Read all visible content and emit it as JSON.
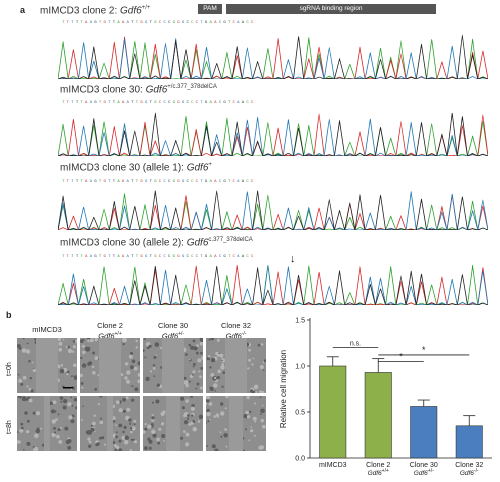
{
  "panel_a": {
    "letter": "a",
    "traces": [
      {
        "title_prefix": "mIMCD3 clone 2: ",
        "gene": "Gdf6",
        "sup": "+/+"
      },
      {
        "title_prefix": "mIMCD3 clone 30: ",
        "gene": "Gdf6",
        "sup": "+/c.377_378delCA"
      },
      {
        "title_prefix": "mIMCD3 clone 30 (allele 1): ",
        "gene": "Gdf6",
        "sup": "+"
      },
      {
        "title_prefix": "mIMCD3 clone 30 (allele 2): ",
        "gene": "Gdf6",
        "sup": "c.377_378delCA"
      }
    ],
    "pam_label": "PAM",
    "sgrna_label": "sgRNA binding region",
    "base_colors": {
      "A": "#2ca02c",
      "T": "#d62728",
      "C": "#1f77b4",
      "G": "#222222"
    }
  },
  "panel_b": {
    "letter": "b",
    "columns": [
      {
        "name": "mIMCD3",
        "gene": "",
        "sup": ""
      },
      {
        "name": "Clone 2",
        "gene": "Gdf6",
        "sup": "+/+"
      },
      {
        "name": "Clone 30",
        "gene": "Gdf6",
        "sup": "+/-"
      },
      {
        "name": "Clone 32",
        "gene": "Gdf6",
        "sup": "-/-"
      }
    ],
    "rows": [
      "t=0h",
      "t=8h"
    ]
  },
  "chart_data": {
    "type": "bar",
    "ylabel": "Relative cell migration",
    "ylim": [
      0,
      1.5
    ],
    "yticks": [
      "0.0",
      "0.5",
      "1.0",
      "1.5"
    ],
    "categories": [
      {
        "name": "mIMCD3",
        "gene": "",
        "sup": ""
      },
      {
        "name": "Clone 2",
        "gene": "Gdf6",
        "sup": "+/+"
      },
      {
        "name": "Clone 30",
        "gene": "Gdf6",
        "sup": "+/-"
      },
      {
        "name": "Clone 32",
        "gene": "Gdf6",
        "sup": "-/-"
      }
    ],
    "values": [
      1.0,
      0.93,
      0.56,
      0.35
    ],
    "errors": [
      0.1,
      0.15,
      0.07,
      0.11
    ],
    "colors": [
      "#8db04a",
      "#8db04a",
      "#4a7ebf",
      "#4a7ebf"
    ],
    "annotations": [
      {
        "from": 0,
        "to": 1,
        "label": "n.s."
      },
      {
        "from": 1,
        "to": 2,
        "label": "*"
      },
      {
        "from": 1,
        "to": 3,
        "label": "*"
      }
    ]
  }
}
